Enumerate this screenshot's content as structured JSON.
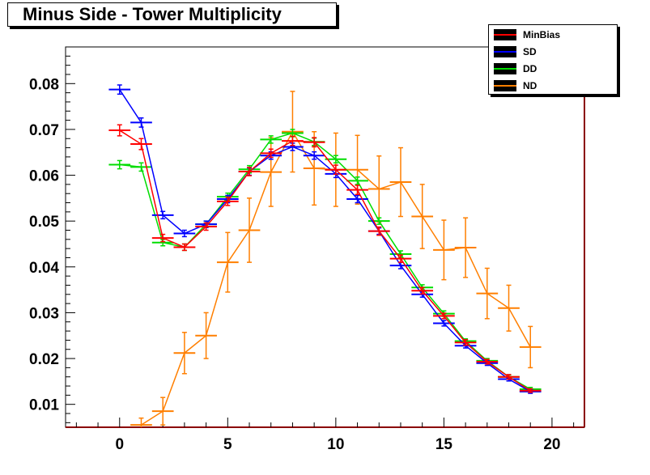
{
  "title": "Minus Side - Tower Multiplicity",
  "chart_data": {
    "type": "line",
    "title": "Minus Side - Tower Multiplicity",
    "xlabel": "",
    "ylabel": "",
    "xlim": [
      -2.5,
      21.5
    ],
    "ylim": [
      0.005,
      0.088
    ],
    "xticks": [
      0,
      5,
      10,
      15,
      20
    ],
    "yticks": [
      0.01,
      0.02,
      0.03,
      0.04,
      0.05,
      0.06,
      0.07,
      0.08
    ],
    "ytick_labels": [
      "0.01",
      "0.02",
      "0.03",
      "0.04",
      "0.05",
      "0.06",
      "0.07",
      "0.08"
    ],
    "grid": false,
    "legend_position": "top-right",
    "series": [
      {
        "name": "MinBias",
        "color": "#ff0000",
        "x": [
          0,
          1,
          2,
          3,
          4,
          5,
          6,
          7,
          8,
          9,
          10,
          11,
          12,
          13,
          14,
          15,
          16,
          17,
          18,
          19
        ],
        "y": [
          0.0698,
          0.0668,
          0.0463,
          0.0443,
          0.0488,
          0.0543,
          0.0608,
          0.0648,
          0.0675,
          0.0672,
          0.0612,
          0.0568,
          0.0478,
          0.0418,
          0.0348,
          0.0293,
          0.0235,
          0.0193,
          0.016,
          0.013
        ],
        "yerr": [
          0.0012,
          0.0012,
          0.0008,
          0.0007,
          0.0008,
          0.0009,
          0.0009,
          0.0009,
          0.001,
          0.001,
          0.001,
          0.001,
          0.0009,
          0.0008,
          0.0007,
          0.0006,
          0.0006,
          0.0005,
          0.0005,
          0.0004
        ]
      },
      {
        "name": "SD",
        "color": "#0000ff",
        "x": [
          0,
          1,
          2,
          3,
          4,
          5,
          6,
          7,
          8,
          9,
          10,
          11,
          12,
          13,
          14,
          15,
          16,
          17,
          18,
          19
        ],
        "y": [
          0.0787,
          0.0715,
          0.0513,
          0.0473,
          0.0493,
          0.0548,
          0.0608,
          0.0643,
          0.0662,
          0.0643,
          0.0603,
          0.0548,
          0.0478,
          0.0403,
          0.034,
          0.0277,
          0.0228,
          0.019,
          0.0155,
          0.0128
        ],
        "yerr": [
          0.001,
          0.001,
          0.0008,
          0.0007,
          0.0007,
          0.0008,
          0.0008,
          0.0008,
          0.0008,
          0.0008,
          0.0008,
          0.0008,
          0.0007,
          0.0007,
          0.0006,
          0.0006,
          0.0005,
          0.0005,
          0.0004,
          0.0004
        ]
      },
      {
        "name": "DD",
        "color": "#00dd00",
        "x": [
          0,
          1,
          2,
          3,
          4,
          5,
          6,
          7,
          8,
          9,
          10,
          11,
          12,
          13,
          14,
          15,
          16,
          17,
          18,
          19
        ],
        "y": [
          0.0623,
          0.0618,
          0.0453,
          0.0443,
          0.0493,
          0.0553,
          0.0613,
          0.0678,
          0.0692,
          0.0673,
          0.0635,
          0.0588,
          0.05,
          0.0428,
          0.0355,
          0.0298,
          0.0238,
          0.0195,
          0.016,
          0.0133
        ],
        "yerr": [
          0.0009,
          0.0009,
          0.0007,
          0.0007,
          0.0007,
          0.0008,
          0.0008,
          0.0008,
          0.0008,
          0.0008,
          0.0008,
          0.0008,
          0.0007,
          0.0007,
          0.0006,
          0.0006,
          0.0005,
          0.0005,
          0.0004,
          0.0004
        ]
      },
      {
        "name": "ND",
        "color": "#ff7f00",
        "x": [
          1,
          2,
          3,
          4,
          5,
          6,
          7,
          8,
          9,
          10,
          11,
          12,
          13,
          14,
          15,
          16,
          17,
          18,
          19
        ],
        "y": [
          0.0055,
          0.0085,
          0.0212,
          0.025,
          0.041,
          0.048,
          0.0607,
          0.0695,
          0.0615,
          0.0612,
          0.0612,
          0.057,
          0.0585,
          0.051,
          0.0437,
          0.0442,
          0.0342,
          0.031,
          0.0225
        ],
        "yerr": [
          0.0015,
          0.003,
          0.0045,
          0.005,
          0.0065,
          0.007,
          0.0075,
          0.0088,
          0.008,
          0.008,
          0.0075,
          0.0072,
          0.0075,
          0.007,
          0.0065,
          0.0065,
          0.0055,
          0.005,
          0.0045
        ]
      }
    ]
  }
}
